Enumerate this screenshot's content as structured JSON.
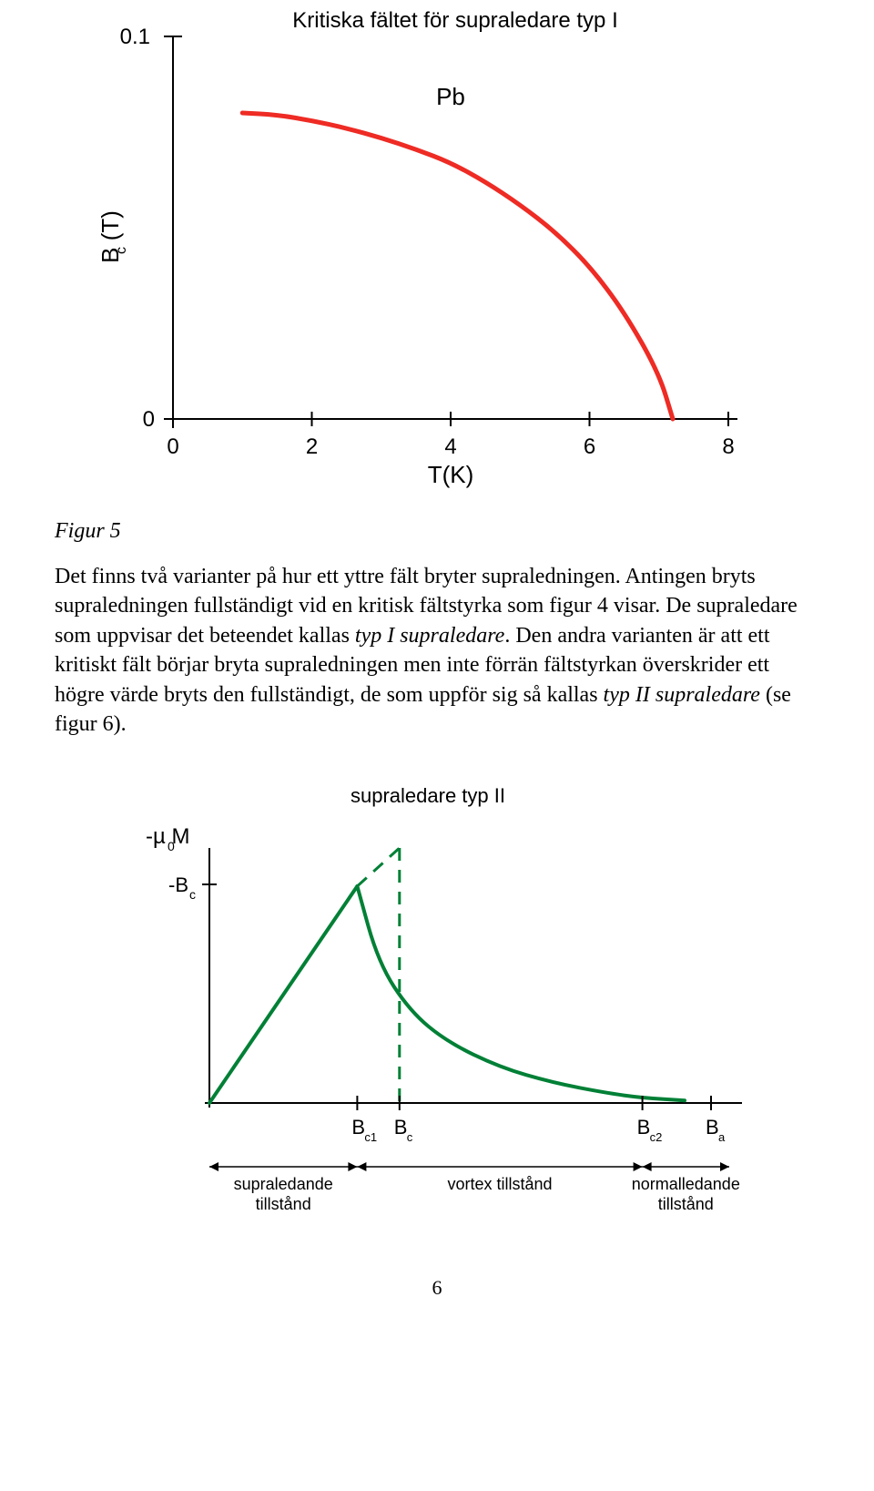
{
  "chart1": {
    "type": "line",
    "title": "Kritiska fältet för supraledare typ I",
    "title_fontsize": 24,
    "series_label": "Pb",
    "label_fontsize": 24,
    "x_axis_label": "T(K)",
    "y_axis_label": "B  (T)",
    "y_axis_subscript": "c",
    "axis_fontsize": 24,
    "x_ticks": [
      "0",
      "2",
      "4",
      "6",
      "8"
    ],
    "y_ticks": [
      "0",
      "0.1"
    ],
    "xlim": [
      0,
      8
    ],
    "ylim": [
      0,
      0.1
    ],
    "curve_color": "#ee2b24",
    "curve_width": 5,
    "axis_color": "#000000",
    "axis_width": 2,
    "background_color": "#ffffff",
    "curve_points": [
      {
        "x": 1.0,
        "y": 0.08
      },
      {
        "x": 1.5,
        "y": 0.0795
      },
      {
        "x": 2.0,
        "y": 0.078
      },
      {
        "x": 2.5,
        "y": 0.076
      },
      {
        "x": 3.0,
        "y": 0.0735
      },
      {
        "x": 3.5,
        "y": 0.0705
      },
      {
        "x": 4.0,
        "y": 0.067
      },
      {
        "x": 4.5,
        "y": 0.062
      },
      {
        "x": 5.0,
        "y": 0.056
      },
      {
        "x": 5.5,
        "y": 0.049
      },
      {
        "x": 6.0,
        "y": 0.04
      },
      {
        "x": 6.5,
        "y": 0.028
      },
      {
        "x": 7.0,
        "y": 0.012
      },
      {
        "x": 7.2,
        "y": 0.0
      }
    ]
  },
  "figure5_label": "Figur 5",
  "paragraph": {
    "t1": "Det finns två varianter på hur ett yttre fält bryter supraledningen. Antingen bryts supraledningen fullständigt vid en kritisk fältstyrka som figur 4 visar. De supraledare som uppvisar det beteendet kallas ",
    "i1": "typ I supraledare",
    "t2": ". Den andra varianten är att ett kritiskt fält börjar bryta supraledningen men inte förrän fältstyrkan överskrider ett högre värde bryts den fullständigt, de som uppför sig så kallas ",
    "i2": "typ II supraledare",
    "t3": " (se figur 6)."
  },
  "chart2": {
    "type": "line",
    "title": "supraledare typ II",
    "title_fontsize": 22,
    "y_axis_label": "-µ M",
    "y_axis_subscript": "0",
    "y_tick_label": "-B",
    "y_tick_subscript": "c",
    "x_tick_labels": {
      "bc1": "B",
      "bc1_sub": "c1",
      "bc": "B",
      "bc_sub": "c",
      "bc2": "B",
      "bc2_sub": "c2",
      "ba": "B",
      "ba_sub": "a"
    },
    "region_labels": {
      "left": "supraledande\ntillstånd",
      "mid": "vortex tillstånd",
      "right": "normalledande\ntillstånd"
    },
    "curve_color": "#008036",
    "curve_width": 4,
    "dash_color": "#008036",
    "dash_width": 3,
    "axis_color": "#000000",
    "axis_width": 2,
    "bc1_x": 0.28,
    "bc_x": 0.36,
    "bc2_x": 0.82,
    "ba_x": 0.95,
    "peak_y": 0.85,
    "bc_y": 1.0,
    "tail_points": [
      {
        "x": 0.28,
        "y": 0.85
      },
      {
        "x": 0.32,
        "y": 0.55
      },
      {
        "x": 0.38,
        "y": 0.36
      },
      {
        "x": 0.45,
        "y": 0.24
      },
      {
        "x": 0.55,
        "y": 0.14
      },
      {
        "x": 0.65,
        "y": 0.08
      },
      {
        "x": 0.75,
        "y": 0.04
      },
      {
        "x": 0.82,
        "y": 0.02
      },
      {
        "x": 0.9,
        "y": 0.01
      }
    ]
  },
  "page_number": "6"
}
